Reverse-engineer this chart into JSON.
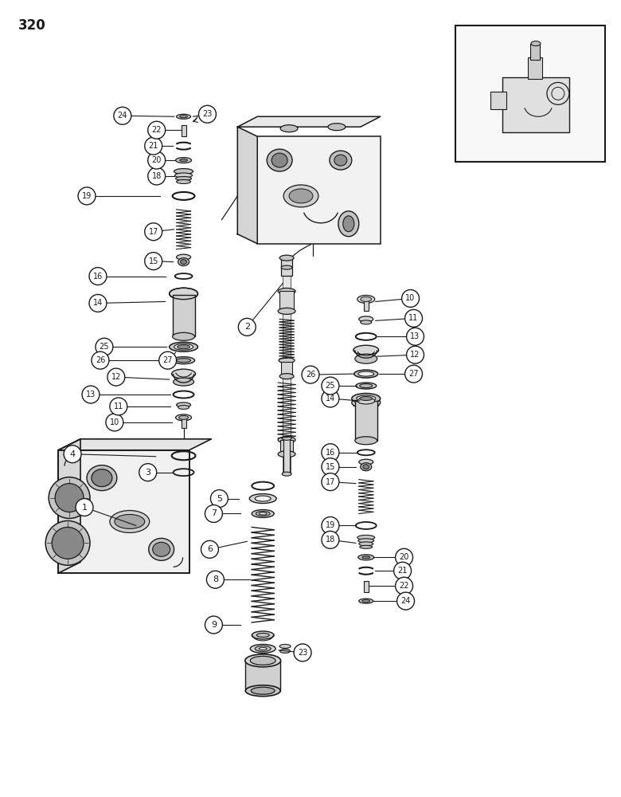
{
  "page_number": "320",
  "bg": "#ffffff",
  "lc": "#1a1a1a",
  "figsize": [
    7.8,
    10.0
  ],
  "dpi": 100
}
